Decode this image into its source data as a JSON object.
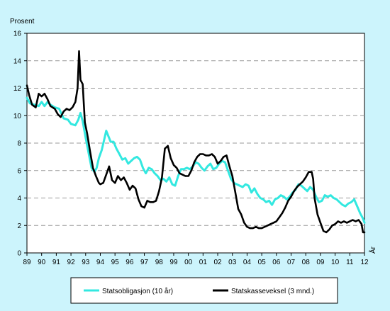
{
  "chart_data": {
    "type": "line",
    "ylabel": "Prosent",
    "xlabel": "År",
    "ylim": [
      0,
      16
    ],
    "yticks": [
      0,
      2,
      4,
      6,
      8,
      10,
      12,
      14,
      16
    ],
    "xlim": [
      1989,
      2012
    ],
    "xticks": [
      "89",
      "90",
      "91",
      "92",
      "93",
      "94",
      "95",
      "96",
      "97",
      "98",
      "99",
      "00",
      "01",
      "02",
      "03",
      "04",
      "05",
      "06",
      "07",
      "08",
      "09",
      "10",
      "11",
      "12"
    ],
    "grid": "horizontal dashed",
    "legend_position": "bottom",
    "series": [
      {
        "name": "Statsobligasjon (10 år)",
        "color": "#33e8e0",
        "points": [
          [
            1989.0,
            11.3
          ],
          [
            1989.2,
            10.9
          ],
          [
            1989.5,
            10.8
          ],
          [
            1989.8,
            10.7
          ],
          [
            1990.0,
            11.0
          ],
          [
            1990.2,
            10.7
          ],
          [
            1990.4,
            11.0
          ],
          [
            1990.6,
            10.8
          ],
          [
            1990.9,
            10.6
          ],
          [
            1991.2,
            10.5
          ],
          [
            1991.5,
            9.8
          ],
          [
            1991.8,
            9.7
          ],
          [
            1992.0,
            9.4
          ],
          [
            1992.3,
            9.3
          ],
          [
            1992.5,
            9.7
          ],
          [
            1992.65,
            10.2
          ],
          [
            1992.8,
            9.6
          ],
          [
            1993.0,
            8.4
          ],
          [
            1993.2,
            7.3
          ],
          [
            1993.4,
            6.2
          ],
          [
            1993.6,
            5.9
          ],
          [
            1993.75,
            6.2
          ],
          [
            1993.9,
            6.9
          ],
          [
            1994.1,
            7.5
          ],
          [
            1994.25,
            8.2
          ],
          [
            1994.4,
            8.9
          ],
          [
            1994.55,
            8.5
          ],
          [
            1994.7,
            8.1
          ],
          [
            1994.9,
            8.1
          ],
          [
            1995.1,
            7.6
          ],
          [
            1995.3,
            7.2
          ],
          [
            1995.5,
            6.8
          ],
          [
            1995.7,
            6.9
          ],
          [
            1995.9,
            6.5
          ],
          [
            1996.1,
            6.7
          ],
          [
            1996.3,
            6.9
          ],
          [
            1996.5,
            7.0
          ],
          [
            1996.7,
            6.8
          ],
          [
            1996.9,
            6.2
          ],
          [
            1997.1,
            5.8
          ],
          [
            1997.3,
            6.2
          ],
          [
            1997.5,
            6.1
          ],
          [
            1997.7,
            5.8
          ],
          [
            1997.9,
            5.6
          ],
          [
            1998.1,
            5.3
          ],
          [
            1998.3,
            5.4
          ],
          [
            1998.5,
            5.2
          ],
          [
            1998.7,
            5.5
          ],
          [
            1998.9,
            5.0
          ],
          [
            1999.1,
            4.9
          ],
          [
            1999.3,
            5.6
          ],
          [
            1999.5,
            6.1
          ],
          [
            1999.7,
            6.1
          ],
          [
            1999.9,
            6.2
          ],
          [
            2000.1,
            6.1
          ],
          [
            2000.3,
            6.3
          ],
          [
            2000.5,
            6.6
          ],
          [
            2000.7,
            6.5
          ],
          [
            2000.9,
            6.2
          ],
          [
            2001.1,
            6.0
          ],
          [
            2001.3,
            6.3
          ],
          [
            2001.5,
            6.5
          ],
          [
            2001.7,
            6.1
          ],
          [
            2001.9,
            6.2
          ],
          [
            2002.1,
            6.5
          ],
          [
            2002.3,
            6.7
          ],
          [
            2002.5,
            6.6
          ],
          [
            2002.7,
            6.0
          ],
          [
            2002.9,
            5.4
          ],
          [
            2003.1,
            5.1
          ],
          [
            2003.3,
            5.0
          ],
          [
            2003.5,
            4.9
          ],
          [
            2003.7,
            4.8
          ],
          [
            2003.9,
            5.0
          ],
          [
            2004.1,
            4.9
          ],
          [
            2004.3,
            4.4
          ],
          [
            2004.5,
            4.7
          ],
          [
            2004.7,
            4.3
          ],
          [
            2004.9,
            4.0
          ],
          [
            2005.1,
            3.9
          ],
          [
            2005.3,
            3.7
          ],
          [
            2005.5,
            3.8
          ],
          [
            2005.7,
            3.5
          ],
          [
            2005.9,
            3.9
          ],
          [
            2006.1,
            4.0
          ],
          [
            2006.3,
            4.2
          ],
          [
            2006.5,
            4.1
          ],
          [
            2006.7,
            3.9
          ],
          [
            2006.9,
            4.1
          ],
          [
            2007.1,
            4.4
          ],
          [
            2007.3,
            4.6
          ],
          [
            2007.5,
            5.0
          ],
          [
            2007.7,
            4.9
          ],
          [
            2007.9,
            4.7
          ],
          [
            2008.1,
            4.5
          ],
          [
            2008.3,
            4.8
          ],
          [
            2008.5,
            4.6
          ],
          [
            2008.7,
            4.1
          ],
          [
            2008.9,
            3.7
          ],
          [
            2009.1,
            3.8
          ],
          [
            2009.3,
            4.2
          ],
          [
            2009.5,
            4.1
          ],
          [
            2009.7,
            4.2
          ],
          [
            2009.9,
            4.0
          ],
          [
            2010.1,
            3.9
          ],
          [
            2010.3,
            3.7
          ],
          [
            2010.5,
            3.5
          ],
          [
            2010.7,
            3.4
          ],
          [
            2010.9,
            3.6
          ],
          [
            2011.1,
            3.7
          ],
          [
            2011.3,
            3.9
          ],
          [
            2011.5,
            3.4
          ],
          [
            2011.7,
            2.9
          ],
          [
            2011.9,
            2.5
          ],
          [
            2012.0,
            2.2
          ]
        ]
      },
      {
        "name": "Statskasseveksel (3 mnd.)",
        "color": "#000000",
        "points": [
          [
            1989.0,
            12.2
          ],
          [
            1989.15,
            11.5
          ],
          [
            1989.35,
            10.8
          ],
          [
            1989.6,
            10.6
          ],
          [
            1989.8,
            11.6
          ],
          [
            1990.0,
            11.4
          ],
          [
            1990.2,
            11.6
          ],
          [
            1990.4,
            11.2
          ],
          [
            1990.6,
            10.7
          ],
          [
            1990.9,
            10.5
          ],
          [
            1991.1,
            10.1
          ],
          [
            1991.3,
            9.9
          ],
          [
            1991.5,
            10.3
          ],
          [
            1991.7,
            10.5
          ],
          [
            1991.9,
            10.4
          ],
          [
            1992.1,
            10.6
          ],
          [
            1992.3,
            11.0
          ],
          [
            1992.45,
            12.0
          ],
          [
            1992.55,
            14.7
          ],
          [
            1992.65,
            12.6
          ],
          [
            1992.8,
            12.3
          ],
          [
            1992.95,
            9.5
          ],
          [
            1993.1,
            8.7
          ],
          [
            1993.3,
            7.4
          ],
          [
            1993.5,
            6.2
          ],
          [
            1993.7,
            5.6
          ],
          [
            1993.9,
            5.1
          ],
          [
            1994.0,
            5.0
          ],
          [
            1994.2,
            5.1
          ],
          [
            1994.4,
            5.7
          ],
          [
            1994.6,
            6.3
          ],
          [
            1994.8,
            5.3
          ],
          [
            1995.0,
            5.1
          ],
          [
            1995.2,
            5.6
          ],
          [
            1995.4,
            5.3
          ],
          [
            1995.6,
            5.5
          ],
          [
            1995.8,
            5.1
          ],
          [
            1996.0,
            4.6
          ],
          [
            1996.2,
            4.9
          ],
          [
            1996.4,
            4.7
          ],
          [
            1996.6,
            3.9
          ],
          [
            1996.8,
            3.4
          ],
          [
            1997.0,
            3.3
          ],
          [
            1997.2,
            3.8
          ],
          [
            1997.4,
            3.7
          ],
          [
            1997.6,
            3.7
          ],
          [
            1997.8,
            3.8
          ],
          [
            1998.0,
            4.5
          ],
          [
            1998.2,
            5.5
          ],
          [
            1998.4,
            7.6
          ],
          [
            1998.6,
            7.8
          ],
          [
            1998.8,
            6.9
          ],
          [
            1999.0,
            6.4
          ],
          [
            1999.2,
            6.2
          ],
          [
            1999.4,
            5.8
          ],
          [
            1999.6,
            5.7
          ],
          [
            1999.8,
            5.6
          ],
          [
            2000.0,
            5.6
          ],
          [
            2000.2,
            6.0
          ],
          [
            2000.4,
            6.6
          ],
          [
            2000.6,
            7.0
          ],
          [
            2000.8,
            7.2
          ],
          [
            2001.0,
            7.2
          ],
          [
            2001.2,
            7.1
          ],
          [
            2001.4,
            7.1
          ],
          [
            2001.6,
            7.2
          ],
          [
            2001.8,
            7.0
          ],
          [
            2002.0,
            6.5
          ],
          [
            2002.2,
            6.7
          ],
          [
            2002.4,
            7.0
          ],
          [
            2002.6,
            7.1
          ],
          [
            2002.8,
            6.3
          ],
          [
            2003.0,
            5.6
          ],
          [
            2003.2,
            4.4
          ],
          [
            2003.4,
            3.2
          ],
          [
            2003.6,
            2.8
          ],
          [
            2003.8,
            2.2
          ],
          [
            2004.0,
            1.9
          ],
          [
            2004.2,
            1.8
          ],
          [
            2004.4,
            1.8
          ],
          [
            2004.6,
            1.9
          ],
          [
            2004.8,
            1.8
          ],
          [
            2005.0,
            1.8
          ],
          [
            2005.2,
            1.9
          ],
          [
            2005.4,
            2.0
          ],
          [
            2005.6,
            2.1
          ],
          [
            2005.8,
            2.2
          ],
          [
            2006.0,
            2.3
          ],
          [
            2006.2,
            2.6
          ],
          [
            2006.4,
            2.9
          ],
          [
            2006.6,
            3.3
          ],
          [
            2006.8,
            3.8
          ],
          [
            2007.0,
            4.1
          ],
          [
            2007.2,
            4.5
          ],
          [
            2007.4,
            4.8
          ],
          [
            2007.6,
            5.0
          ],
          [
            2007.8,
            5.2
          ],
          [
            2008.0,
            5.5
          ],
          [
            2008.2,
            5.9
          ],
          [
            2008.4,
            5.9
          ],
          [
            2008.5,
            5.4
          ],
          [
            2008.6,
            4.0
          ],
          [
            2008.8,
            2.8
          ],
          [
            2009.0,
            2.2
          ],
          [
            2009.2,
            1.6
          ],
          [
            2009.4,
            1.5
          ],
          [
            2009.6,
            1.7
          ],
          [
            2009.8,
            2.0
          ],
          [
            2010.0,
            2.1
          ],
          [
            2010.2,
            2.3
          ],
          [
            2010.4,
            2.2
          ],
          [
            2010.6,
            2.3
          ],
          [
            2010.8,
            2.2
          ],
          [
            2011.0,
            2.3
          ],
          [
            2011.2,
            2.4
          ],
          [
            2011.4,
            2.3
          ],
          [
            2011.6,
            2.4
          ],
          [
            2011.8,
            2.1
          ],
          [
            2011.9,
            1.5
          ],
          [
            2012.0,
            1.5
          ]
        ]
      }
    ]
  }
}
